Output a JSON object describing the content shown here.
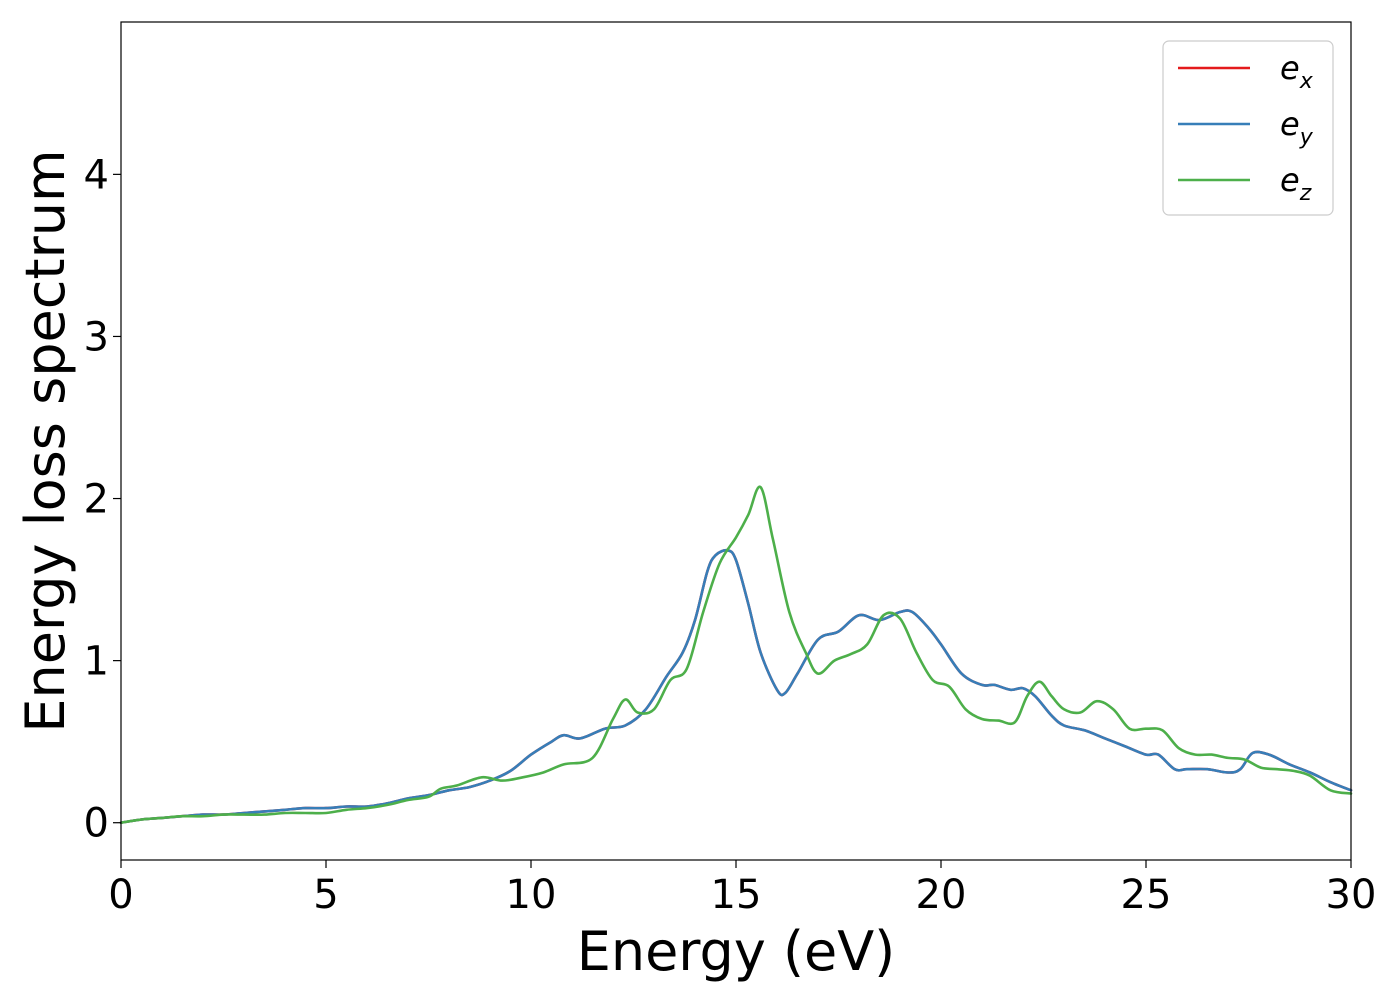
{
  "chart_data": {
    "type": "line",
    "title": "",
    "xlabel": "Energy (eV)",
    "ylabel": "Energy loss spectrum",
    "xlim": [
      0,
      30
    ],
    "ylim": [
      -0.23,
      4.94
    ],
    "xticks": [
      0,
      5,
      10,
      15,
      20,
      25,
      30
    ],
    "yticks": [
      0,
      1,
      2,
      3,
      4
    ],
    "grid": false,
    "legend_position": "top-right",
    "series": [
      {
        "name": "e_x",
        "legend_base": "e",
        "legend_sub": "x",
        "color": "#e41a1c",
        "x": [
          0,
          0.5,
          1,
          1.5,
          2,
          2.5,
          3,
          3.5,
          4,
          4.5,
          5,
          5.5,
          6,
          6.5,
          7,
          7.5,
          8,
          8.5,
          9,
          9.5,
          10,
          10.5,
          10.8,
          11.2,
          11.8,
          12.3,
          12.8,
          13.3,
          13.7,
          14,
          14.3,
          14.5,
          14.8,
          15,
          15.3,
          15.6,
          16,
          16.2,
          16.5,
          17,
          17.5,
          18,
          18.5,
          19,
          19.3,
          19.7,
          20,
          20.5,
          21,
          21.3,
          21.7,
          22,
          22.3,
          22.7,
          23,
          23.5,
          24,
          24.5,
          25,
          25.3,
          25.7,
          26,
          26.5,
          27,
          27.3,
          27.6,
          28,
          28.5,
          29,
          29.5,
          30
        ],
        "y": [
          0,
          0.02,
          0.03,
          0.04,
          0.05,
          0.05,
          0.06,
          0.07,
          0.08,
          0.09,
          0.09,
          0.1,
          0.1,
          0.12,
          0.15,
          0.17,
          0.2,
          0.22,
          0.26,
          0.32,
          0.42,
          0.5,
          0.54,
          0.52,
          0.58,
          0.6,
          0.7,
          0.9,
          1.05,
          1.25,
          1.55,
          1.65,
          1.68,
          1.62,
          1.35,
          1.05,
          0.82,
          0.8,
          0.92,
          1.13,
          1.18,
          1.28,
          1.25,
          1.3,
          1.3,
          1.2,
          1.1,
          0.92,
          0.85,
          0.85,
          0.82,
          0.83,
          0.78,
          0.66,
          0.6,
          0.57,
          0.52,
          0.47,
          0.42,
          0.42,
          0.33,
          0.33,
          0.33,
          0.31,
          0.33,
          0.43,
          0.42,
          0.36,
          0.31,
          0.25,
          0.2
        ]
      },
      {
        "name": "e_y",
        "legend_base": "e",
        "legend_sub": "y",
        "color": "#377eb8",
        "x": [
          0,
          0.5,
          1,
          1.5,
          2,
          2.5,
          3,
          3.5,
          4,
          4.5,
          5,
          5.5,
          6,
          6.5,
          7,
          7.5,
          8,
          8.5,
          9,
          9.5,
          10,
          10.5,
          10.8,
          11.2,
          11.8,
          12.3,
          12.8,
          13.3,
          13.7,
          14,
          14.3,
          14.5,
          14.8,
          15,
          15.3,
          15.6,
          16,
          16.2,
          16.5,
          17,
          17.5,
          18,
          18.5,
          19,
          19.3,
          19.7,
          20,
          20.5,
          21,
          21.3,
          21.7,
          22,
          22.3,
          22.7,
          23,
          23.5,
          24,
          24.5,
          25,
          25.3,
          25.7,
          26,
          26.5,
          27,
          27.3,
          27.6,
          28,
          28.5,
          29,
          29.5,
          30
        ],
        "y": [
          0,
          0.02,
          0.03,
          0.04,
          0.05,
          0.05,
          0.06,
          0.07,
          0.08,
          0.09,
          0.09,
          0.1,
          0.1,
          0.12,
          0.15,
          0.17,
          0.2,
          0.22,
          0.26,
          0.32,
          0.42,
          0.5,
          0.54,
          0.52,
          0.58,
          0.6,
          0.7,
          0.9,
          1.05,
          1.25,
          1.55,
          1.65,
          1.68,
          1.62,
          1.35,
          1.05,
          0.82,
          0.8,
          0.92,
          1.13,
          1.18,
          1.28,
          1.25,
          1.3,
          1.3,
          1.2,
          1.1,
          0.92,
          0.85,
          0.85,
          0.82,
          0.83,
          0.78,
          0.66,
          0.6,
          0.57,
          0.52,
          0.47,
          0.42,
          0.42,
          0.33,
          0.33,
          0.33,
          0.31,
          0.33,
          0.43,
          0.42,
          0.36,
          0.31,
          0.25,
          0.2
        ]
      },
      {
        "name": "e_z",
        "legend_base": "e",
        "legend_sub": "z",
        "color": "#4daf4a",
        "x": [
          0,
          0.5,
          1,
          1.5,
          2,
          2.5,
          3,
          3.5,
          4,
          4.5,
          5,
          5.5,
          6,
          6.5,
          7,
          7.5,
          7.8,
          8.2,
          8.8,
          9.3,
          9.8,
          10.3,
          10.8,
          11.5,
          12,
          12.3,
          12.6,
          13,
          13.4,
          13.8,
          14.2,
          14.6,
          15,
          15.3,
          15.6,
          15.9,
          16.3,
          16.7,
          17,
          17.4,
          17.8,
          18.2,
          18.6,
          19,
          19.4,
          19.8,
          20.2,
          20.6,
          21,
          21.4,
          21.8,
          22.1,
          22.4,
          22.7,
          23,
          23.4,
          23.8,
          24.2,
          24.6,
          25,
          25.4,
          25.8,
          26.2,
          26.6,
          27,
          27.4,
          27.8,
          28.2,
          28.6,
          29,
          29.5,
          30
        ],
        "y": [
          0,
          0.02,
          0.03,
          0.04,
          0.04,
          0.05,
          0.05,
          0.05,
          0.06,
          0.06,
          0.06,
          0.08,
          0.09,
          0.11,
          0.14,
          0.16,
          0.21,
          0.23,
          0.28,
          0.26,
          0.28,
          0.31,
          0.36,
          0.4,
          0.64,
          0.76,
          0.68,
          0.7,
          0.88,
          0.95,
          1.3,
          1.6,
          1.76,
          1.9,
          2.07,
          1.75,
          1.3,
          1.05,
          0.92,
          1.0,
          1.04,
          1.1,
          1.28,
          1.26,
          1.05,
          0.88,
          0.84,
          0.7,
          0.64,
          0.63,
          0.62,
          0.78,
          0.87,
          0.78,
          0.7,
          0.68,
          0.75,
          0.7,
          0.58,
          0.58,
          0.57,
          0.46,
          0.42,
          0.42,
          0.4,
          0.39,
          0.34,
          0.33,
          0.32,
          0.29,
          0.2,
          0.18
        ]
      }
    ]
  }
}
